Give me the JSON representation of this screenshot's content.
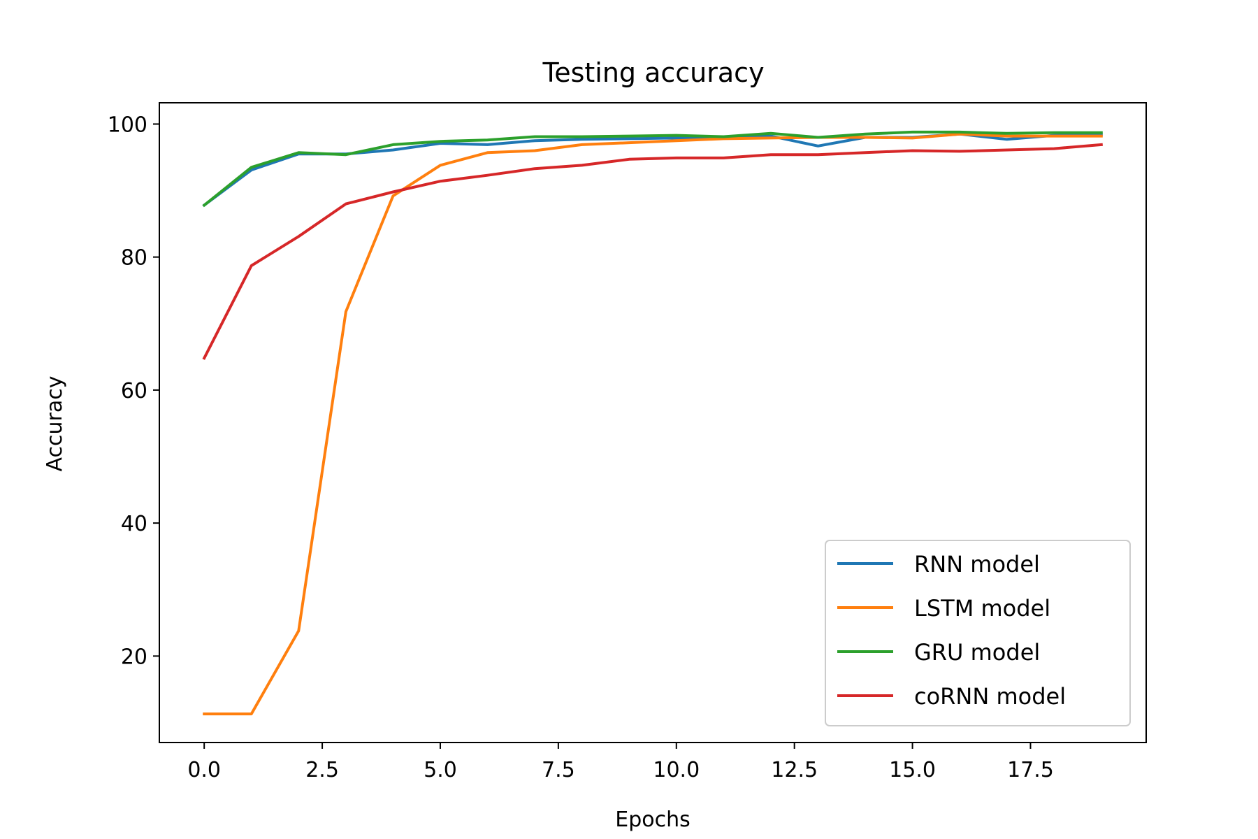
{
  "chart_data": {
    "type": "line",
    "title": "Testing accuracy",
    "xlabel": "Epochs",
    "ylabel": "Accuracy",
    "xlim": [
      -0.95,
      19.95
    ],
    "ylim": [
      7.0,
      103.2
    ],
    "xticks": [
      0.0,
      2.5,
      5.0,
      7.5,
      10.0,
      12.5,
      15.0,
      17.5
    ],
    "xtick_labels": [
      "0.0",
      "2.5",
      "5.0",
      "7.5",
      "10.0",
      "12.5",
      "15.0",
      "17.5"
    ],
    "yticks": [
      20,
      40,
      60,
      80,
      100
    ],
    "ytick_labels": [
      "20",
      "40",
      "60",
      "80",
      "100"
    ],
    "grid": false,
    "legend_position": "lower-right",
    "x": [
      0,
      1,
      2,
      3,
      4,
      5,
      6,
      7,
      8,
      9,
      10,
      11,
      12,
      13,
      14,
      15,
      16,
      17,
      18,
      19
    ],
    "series": [
      {
        "name": "RNN model",
        "color": "#1f77b4",
        "values": [
          87.8,
          93.1,
          95.5,
          95.5,
          96.1,
          97.1,
          96.9,
          97.5,
          97.7,
          97.8,
          97.9,
          98.0,
          98.2,
          96.7,
          98.0,
          98.0,
          98.5,
          97.7,
          98.3,
          98.4
        ]
      },
      {
        "name": "LSTM model",
        "color": "#ff7f0e",
        "values": [
          11.3,
          11.3,
          23.8,
          71.8,
          89.2,
          93.8,
          95.7,
          96.0,
          96.9,
          97.2,
          97.5,
          97.8,
          97.9,
          98.0,
          98.0,
          97.9,
          98.5,
          98.2,
          98.2,
          98.2
        ]
      },
      {
        "name": "GRU model",
        "color": "#2ca02c",
        "values": [
          87.8,
          93.5,
          95.7,
          95.4,
          96.9,
          97.4,
          97.6,
          98.1,
          98.1,
          98.2,
          98.3,
          98.1,
          98.6,
          98.0,
          98.5,
          98.8,
          98.8,
          98.6,
          98.7,
          98.7
        ]
      },
      {
        "name": "coRNN model",
        "color": "#d62728",
        "values": [
          64.8,
          78.7,
          83.1,
          88.0,
          89.8,
          91.4,
          92.3,
          93.3,
          93.8,
          94.7,
          94.9,
          94.9,
          95.4,
          95.4,
          95.7,
          96.0,
          95.9,
          96.1,
          96.3,
          96.9
        ]
      }
    ]
  }
}
